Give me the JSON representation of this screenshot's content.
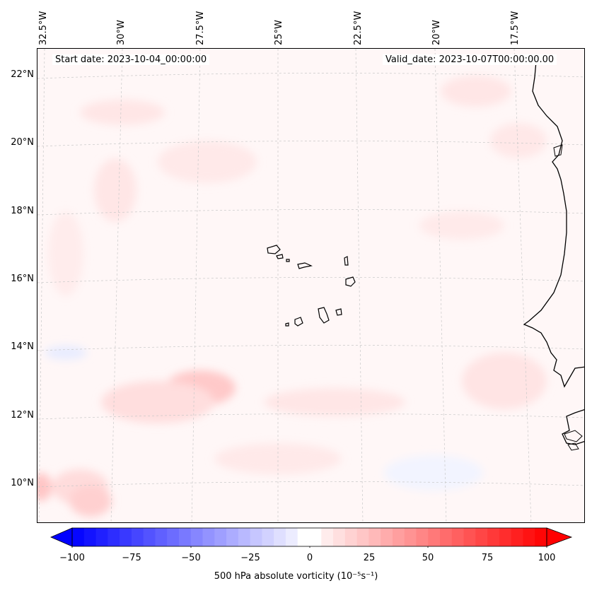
{
  "header": {
    "start_date": "Start date: 2023-10-04_00:00:00",
    "valid_date": "Valid_date: 2023-10-07T00:00:00.00"
  },
  "longitude_labels": [
    "32.5°W",
    "30°W",
    "27.5°W",
    "25°W",
    "22.5°W",
    "20°W",
    "17.5°W"
  ],
  "latitude_labels": [
    "22°N",
    "20°N",
    "18°N",
    "16°N",
    "14°N",
    "12°N",
    "10°N"
  ],
  "colorbar": {
    "ticks": [
      "−100",
      "−75",
      "−50",
      "−25",
      "0",
      "25",
      "50",
      "75",
      "100"
    ],
    "label": "500 hPa absolute vorticity (10⁻⁵s⁻¹)",
    "min": -100,
    "max": 100,
    "step": 5,
    "colors": {
      "negative": "#0000ff",
      "neutral": "#ffffff",
      "positive": "#ff0000"
    }
  }
}
